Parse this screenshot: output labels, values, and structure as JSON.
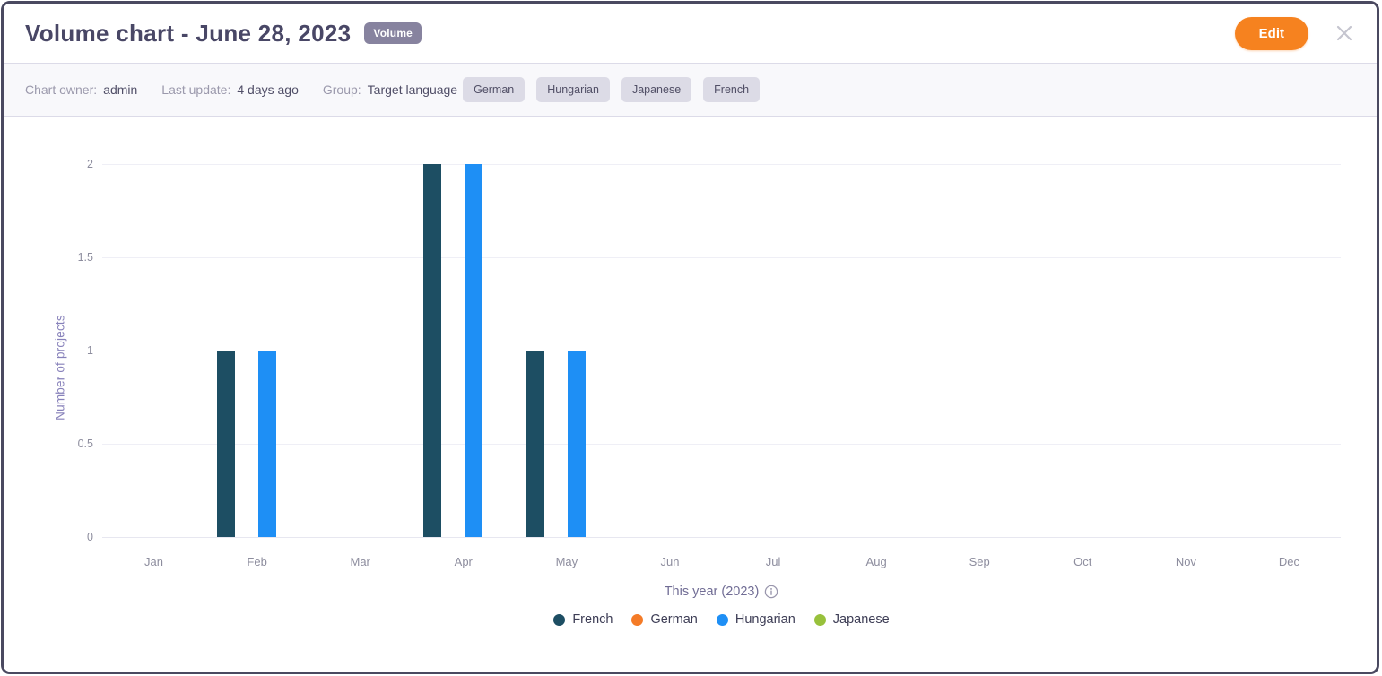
{
  "window": {
    "title": "Volume chart - June 28, 2023",
    "type_badge": "Volume",
    "edit_label": "Edit"
  },
  "meta": {
    "owner_label": "Chart owner:",
    "owner_value": "admin",
    "update_label": "Last update:",
    "update_value": "4 days ago",
    "group_label": "Group:",
    "group_value": "Target language",
    "tags": [
      "German",
      "Hungarian",
      "Japanese",
      "French"
    ]
  },
  "icons": {
    "close": "x-icon",
    "info": "info-circle-icon"
  },
  "colors": {
    "accent_orange": "#f6821f",
    "badge_gray": "#87839f",
    "window_border": "#4a4960"
  },
  "chart_data": {
    "type": "bar",
    "title": "Volume chart - June 28, 2023",
    "categories": [
      "Jan",
      "Feb",
      "Mar",
      "Apr",
      "May",
      "Jun",
      "Jul",
      "Aug",
      "Sep",
      "Oct",
      "Nov",
      "Dec"
    ],
    "series": [
      {
        "name": "French",
        "color": "#1d4e63",
        "values": [
          0,
          1,
          0,
          2,
          1,
          0,
          0,
          0,
          0,
          0,
          0,
          0
        ]
      },
      {
        "name": "German",
        "color": "#f47b27",
        "values": [
          0,
          0,
          0,
          0,
          0,
          0,
          0,
          0,
          0,
          0,
          0,
          0
        ]
      },
      {
        "name": "Hungarian",
        "color": "#1e8ff5",
        "values": [
          0,
          1,
          0,
          2,
          1,
          0,
          0,
          0,
          0,
          0,
          0,
          0
        ]
      },
      {
        "name": "Japanese",
        "color": "#98c13c",
        "values": [
          0,
          0,
          0,
          0,
          0,
          0,
          0,
          0,
          0,
          0,
          0,
          0
        ]
      }
    ],
    "xlabel": "",
    "ylabel": "Number of projects",
    "ylim": [
      0,
      2
    ],
    "yticks": [
      0,
      0.5,
      1,
      1.5,
      2
    ],
    "caption": "This year (2023)",
    "legend_position": "bottom",
    "grid": "horizontal"
  }
}
